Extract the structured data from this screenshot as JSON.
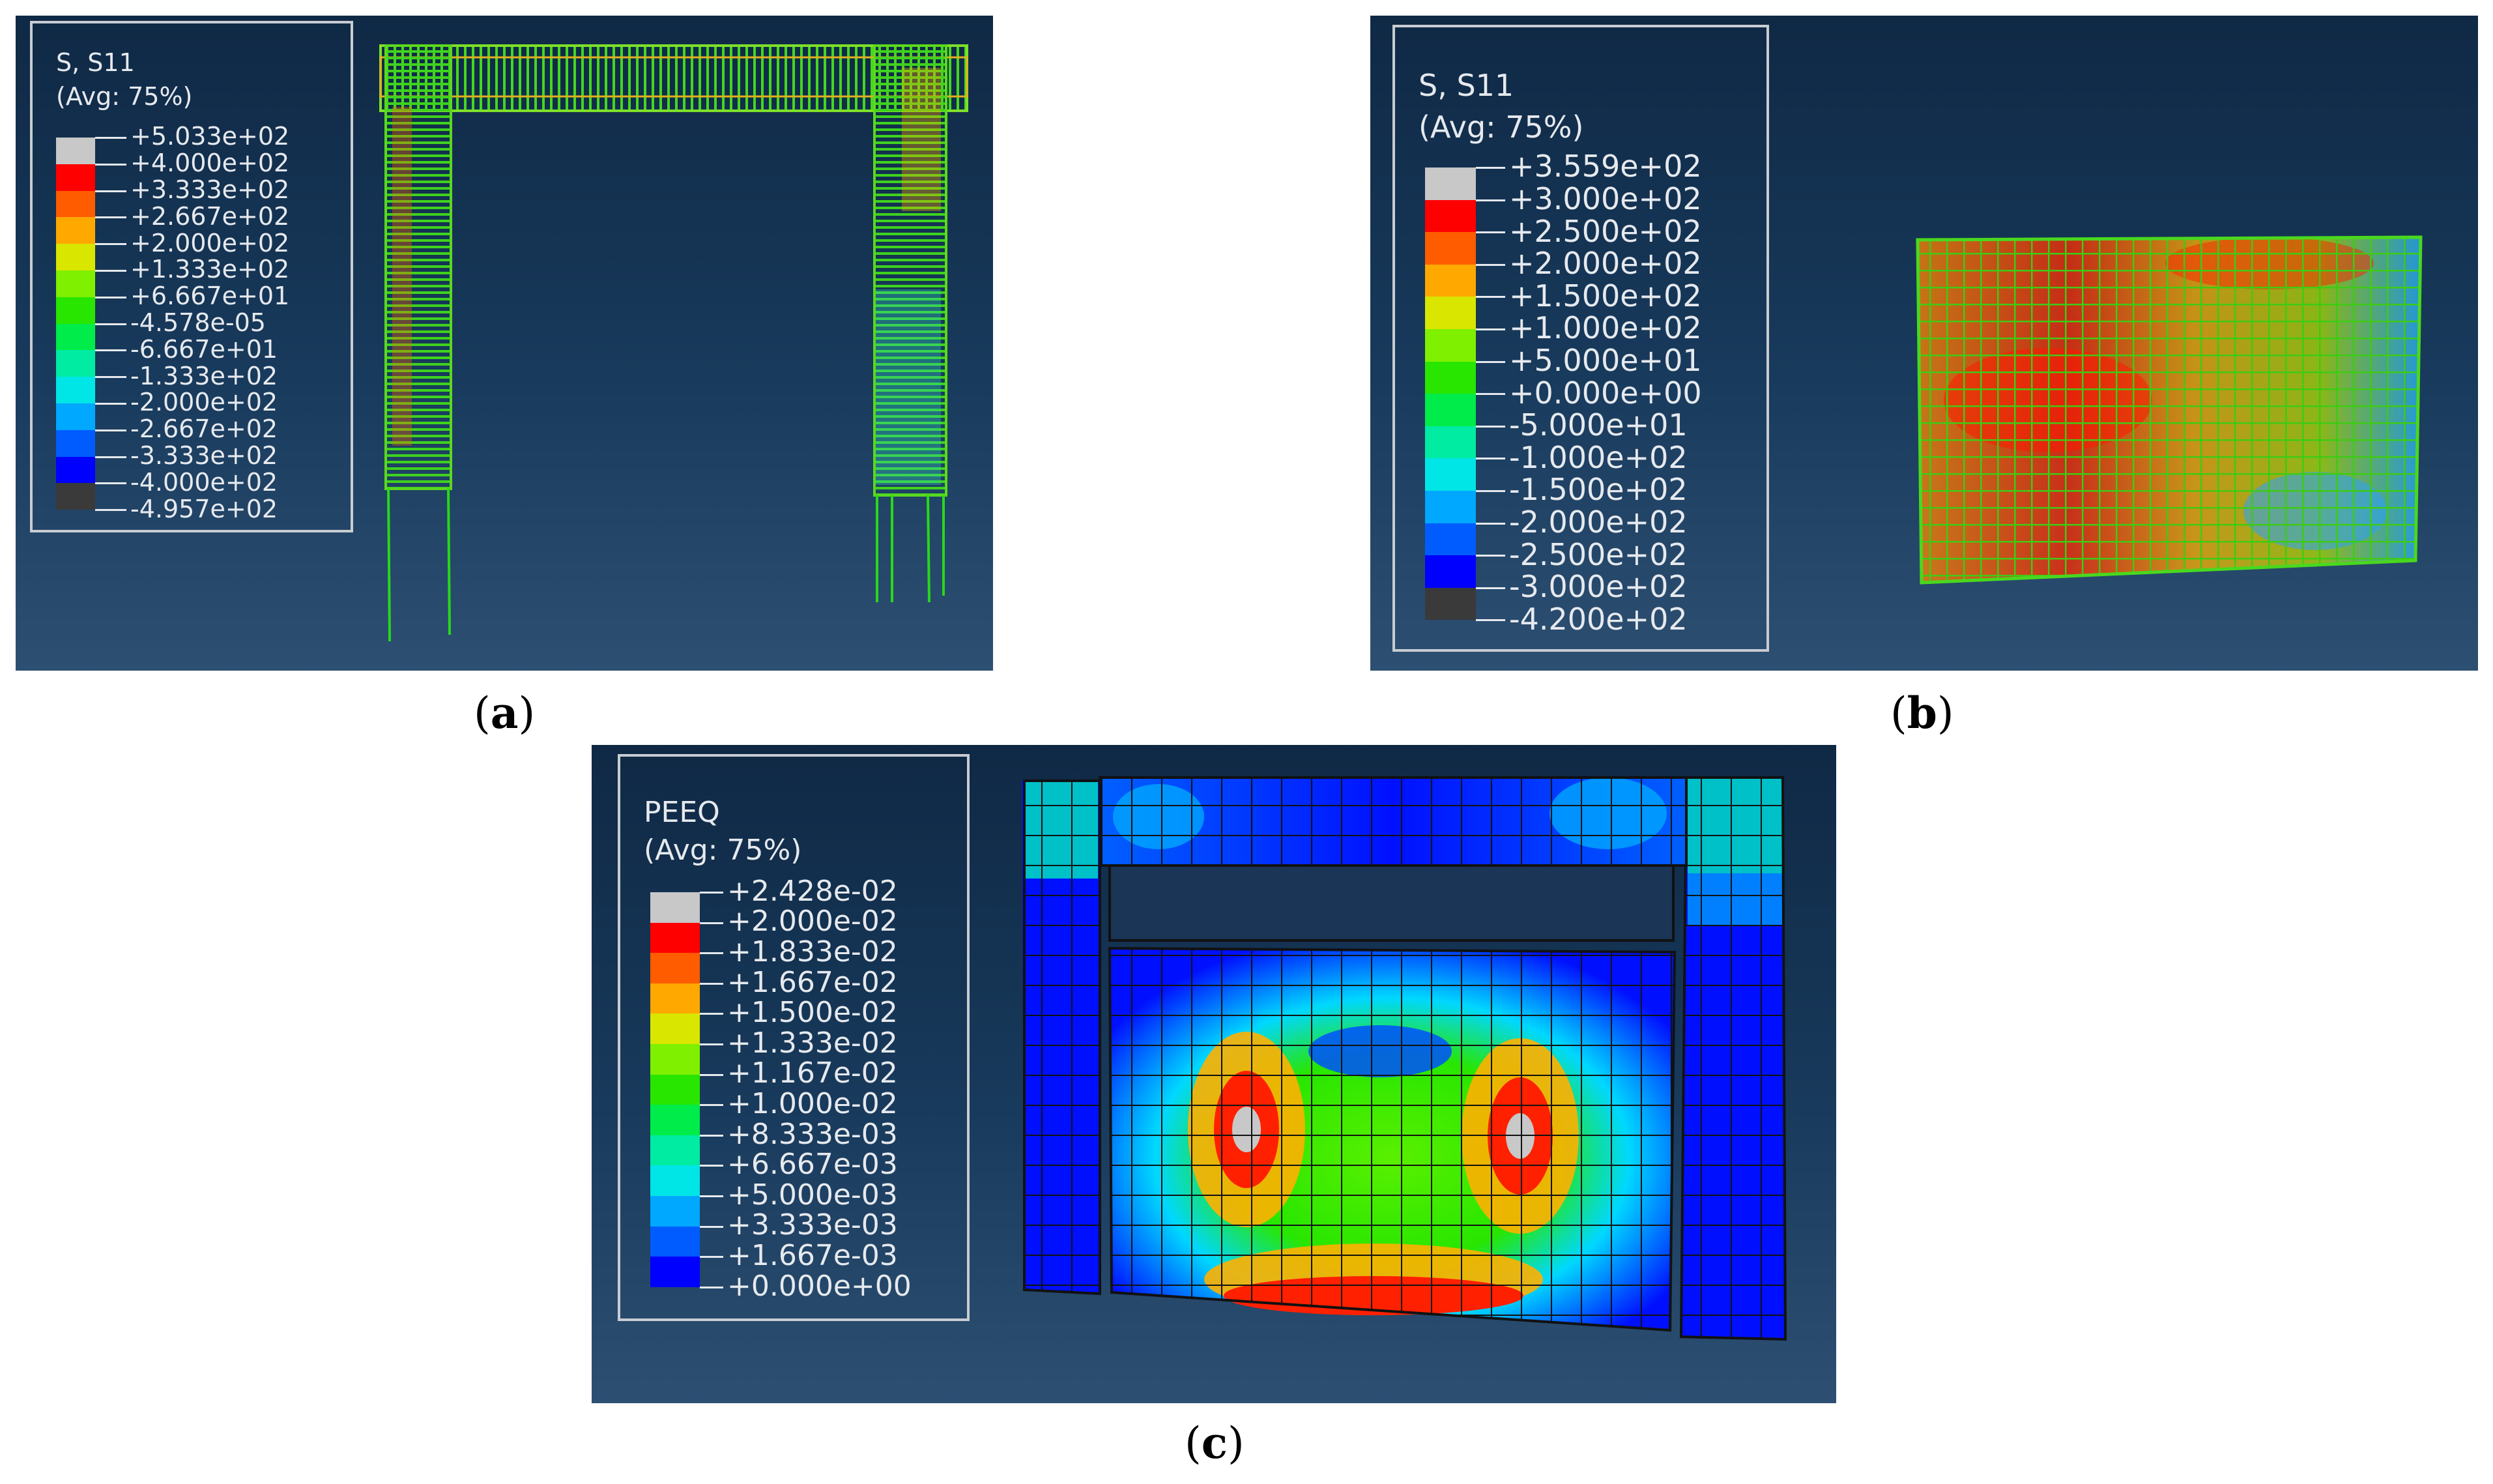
{
  "panels": [
    {
      "id": "a",
      "caption_letter": "a",
      "legend": {
        "title": "S, S11",
        "subtitle": "(Avg: 75%)",
        "colors": [
          "#c8c8c8",
          "#ff0000",
          "#ff5c00",
          "#ffa800",
          "#d9e600",
          "#7ef000",
          "#28e600",
          "#00ec4a",
          "#00eca2",
          "#00e6e6",
          "#00a8ff",
          "#005cff",
          "#0000ff",
          "#3a3a3a"
        ],
        "labels": [
          "+5.033e+02",
          "+4.000e+02",
          "+3.333e+02",
          "+2.667e+02",
          "+2.000e+02",
          "+1.333e+02",
          "+6.667e+01",
          "-4.578e-05",
          "-6.667e+01",
          "-1.333e+02",
          "-2.000e+02",
          "-2.667e+02",
          "-3.333e+02",
          "-4.000e+02",
          "-4.957e+02"
        ]
      }
    },
    {
      "id": "b",
      "caption_letter": "b",
      "legend": {
        "title": "S, S11",
        "subtitle": "(Avg: 75%)",
        "colors": [
          "#c8c8c8",
          "#ff0000",
          "#ff5c00",
          "#ffa800",
          "#d9e600",
          "#7ef000",
          "#28e600",
          "#00ec4a",
          "#00eca2",
          "#00e6e6",
          "#00a8ff",
          "#005cff",
          "#0000ff",
          "#3a3a3a"
        ],
        "labels": [
          "+3.559e+02",
          "+3.000e+02",
          "+2.500e+02",
          "+2.000e+02",
          "+1.500e+02",
          "+1.000e+02",
          "+5.000e+01",
          "+0.000e+00",
          "-5.000e+01",
          "-1.000e+02",
          "-1.500e+02",
          "-2.000e+02",
          "-2.500e+02",
          "-3.000e+02",
          "-4.200e+02"
        ]
      }
    },
    {
      "id": "c",
      "caption_letter": "c",
      "legend": {
        "title": "PEEQ",
        "subtitle": "(Avg: 75%)",
        "colors": [
          "#c8c8c8",
          "#ff0000",
          "#ff5c00",
          "#ffa800",
          "#d9e600",
          "#7ef000",
          "#28e600",
          "#00ec4a",
          "#00eca2",
          "#00e6e6",
          "#00a8ff",
          "#005cff",
          "#0000ff"
        ],
        "labels": [
          "+2.428e-02",
          "+2.000e-02",
          "+1.833e-02",
          "+1.667e-02",
          "+1.500e-02",
          "+1.333e-02",
          "+1.167e-02",
          "+1.000e-02",
          "+8.333e-03",
          "+6.667e-03",
          "+5.000e-03",
          "+3.333e-03",
          "+1.667e-03",
          "+0.000e+00"
        ]
      }
    }
  ]
}
